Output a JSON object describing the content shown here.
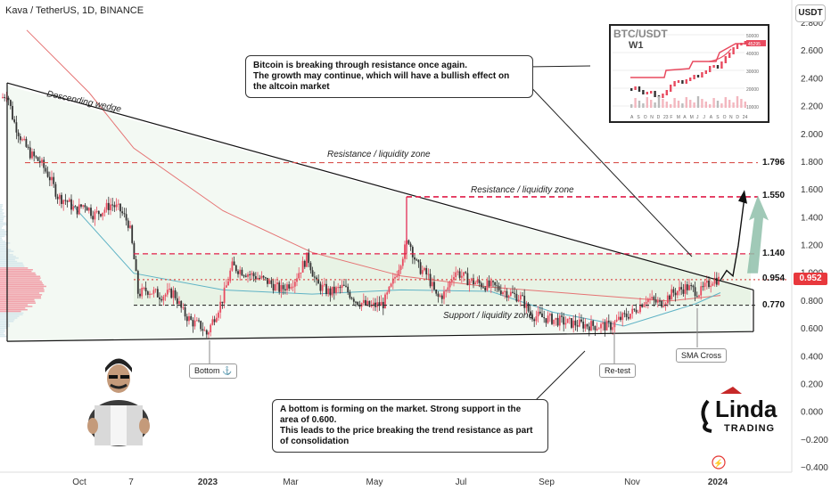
{
  "header": {
    "title": "Kava / TetherUS, 1D, BINANCE",
    "currency_button": "USDT"
  },
  "y_axis_labels": [
    "2.800",
    "2.600",
    "2.400",
    "2.200",
    "2.000",
    "1.800",
    "1.600",
    "1.400",
    "1.200",
    "1.000",
    "0.800",
    "0.600",
    "0.400",
    "0.200",
    "0.000",
    "−0.200",
    "−0.400"
  ],
  "x_axis_labels": [
    "Oct",
    "7",
    "2023",
    "Mar",
    "May",
    "Jul",
    "Sep",
    "Nov",
    "2024"
  ],
  "current_price": {
    "value": "0.952",
    "color": "#e8383d"
  },
  "levels": [
    {
      "value": 1.796,
      "label": "1.796",
      "zone_label": "Resistance / liquidity zone",
      "color": "#d9534f"
    },
    {
      "value": 1.55,
      "label": "1.550",
      "zone_label": "Resistance / liquidity zone",
      "color": "#e11d48"
    },
    {
      "value": 1.14,
      "label": "1.140",
      "zone_label": "",
      "color": "#e11d48"
    },
    {
      "value": 0.954,
      "label": "0.954",
      "zone_label": "",
      "color": "#d9534f"
    },
    {
      "value": 0.77,
      "label": "0.770",
      "zone_label": "Support / liquidity zone",
      "color": "#333333"
    }
  ],
  "annotations": {
    "descending_wedge": "Descending wedge",
    "bottom": "Bottom ⚓",
    "retest": "Re-test",
    "sma_cross": "SMA Cross"
  },
  "notes": {
    "btc_note_line1": "Bitcoin is breaking through resistance once again.",
    "btc_note_line2": "The growth may continue, which will have a bullish effect on the altcoin market",
    "bottom_note_line1": "A bottom is forming on the market. Strong support in the area of 0.600.",
    "bottom_note_line2": "This leads to the price breaking the trend resistance as part of consolidation"
  },
  "inset": {
    "title": "BTC/USDT",
    "timeframe": "W1",
    "y_labels": [
      "50000",
      "40000",
      "30000",
      "20000",
      "10000"
    ],
    "x_labels": [
      "A",
      "S",
      "O",
      "N",
      "D",
      "23",
      "F",
      "M",
      "A",
      "M",
      "J",
      "J",
      "A",
      "S",
      "O",
      "N",
      "D",
      "24"
    ],
    "price_tag": "45295"
  },
  "brand": {
    "line1": "Linda",
    "line2": "TRADING"
  },
  "colors": {
    "up": "#e84a5f",
    "down": "#333333",
    "zone_green": "#cfe8cf",
    "sma_red": "#e57373",
    "sma_teal": "#5fb3c5",
    "arrow": "#8fbfaa"
  },
  "chart_data": {
    "type": "candlestick",
    "title": "Kava / TetherUS, 1D, BINANCE",
    "ylim": [
      -0.4,
      2.8
    ],
    "x_ticks": [
      "Oct",
      "7",
      "2023",
      "Mar",
      "May",
      "Jul",
      "Sep",
      "Nov",
      "2024"
    ],
    "close_path_points": [
      [
        0,
        2.25
      ],
      [
        8,
        2.3
      ],
      [
        15,
        2.1
      ],
      [
        25,
        1.95
      ],
      [
        35,
        1.85
      ],
      [
        45,
        1.8
      ],
      [
        55,
        1.7
      ],
      [
        65,
        1.55
      ],
      [
        75,
        1.52
      ],
      [
        85,
        1.45
      ],
      [
        95,
        1.5
      ],
      [
        105,
        1.42
      ],
      [
        115,
        1.45
      ],
      [
        125,
        1.5
      ],
      [
        135,
        1.45
      ],
      [
        145,
        1.35
      ],
      [
        150,
        1.12
      ],
      [
        155,
        0.85
      ],
      [
        165,
        0.88
      ],
      [
        180,
        0.84
      ],
      [
        195,
        0.86
      ],
      [
        205,
        0.72
      ],
      [
        215,
        0.65
      ],
      [
        225,
        0.62
      ],
      [
        232,
        0.56
      ],
      [
        240,
        0.68
      ],
      [
        250,
        0.82
      ],
      [
        260,
        1.05
      ],
      [
        270,
        1.02
      ],
      [
        285,
        0.98
      ],
      [
        300,
        0.94
      ],
      [
        315,
        0.88
      ],
      [
        330,
        0.95
      ],
      [
        345,
        1.12
      ],
      [
        355,
        0.92
      ],
      [
        370,
        0.86
      ],
      [
        385,
        0.9
      ],
      [
        400,
        0.8
      ],
      [
        415,
        0.76
      ],
      [
        430,
        0.78
      ],
      [
        440,
        0.92
      ],
      [
        450,
        1.1
      ],
      [
        458,
        1.25
      ],
      [
        468,
        1.05
      ],
      [
        480,
        0.98
      ],
      [
        490,
        0.82
      ],
      [
        500,
        0.86
      ],
      [
        510,
        1.02
      ],
      [
        525,
        0.95
      ],
      [
        540,
        0.92
      ],
      [
        555,
        0.9
      ],
      [
        570,
        0.86
      ],
      [
        585,
        0.82
      ],
      [
        595,
        0.7
      ],
      [
        610,
        0.68
      ],
      [
        625,
        0.66
      ],
      [
        640,
        0.64
      ],
      [
        655,
        0.63
      ],
      [
        670,
        0.62
      ],
      [
        685,
        0.62
      ],
      [
        695,
        0.67
      ],
      [
        710,
        0.72
      ],
      [
        725,
        0.82
      ],
      [
        740,
        0.78
      ],
      [
        755,
        0.86
      ],
      [
        770,
        0.9
      ],
      [
        785,
        0.86
      ],
      [
        800,
        0.96
      ],
      [
        808,
        0.95
      ]
    ],
    "projection": [
      [
        808,
        0.95
      ],
      [
        815,
        1.02
      ],
      [
        822,
        0.98
      ],
      [
        828,
        1.2
      ],
      [
        835,
        1.55
      ]
    ],
    "sma_red": [
      [
        30,
        2.75
      ],
      [
        100,
        2.3
      ],
      [
        150,
        1.9
      ],
      [
        250,
        1.45
      ],
      [
        350,
        1.15
      ],
      [
        450,
        0.98
      ],
      [
        550,
        0.9
      ],
      [
        650,
        0.85
      ],
      [
        750,
        0.8
      ],
      [
        808,
        0.84
      ]
    ],
    "sma_teal": [
      [
        80,
        1.5
      ],
      [
        150,
        1.0
      ],
      [
        250,
        0.88
      ],
      [
        350,
        0.85
      ],
      [
        450,
        0.88
      ],
      [
        550,
        0.87
      ],
      [
        620,
        0.72
      ],
      [
        700,
        0.62
      ],
      [
        780,
        0.78
      ],
      [
        808,
        0.86
      ]
    ]
  }
}
